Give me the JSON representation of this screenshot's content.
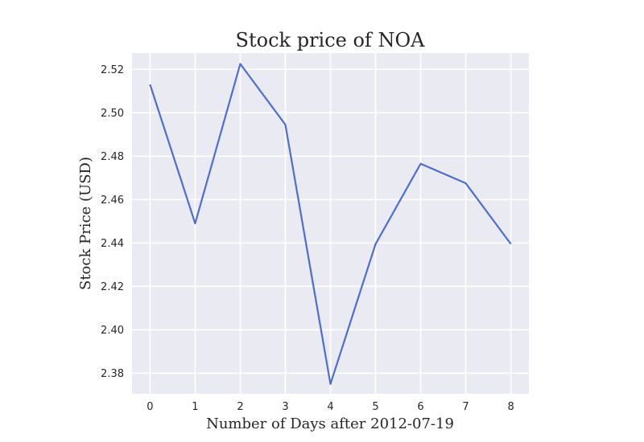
{
  "chart_data": {
    "type": "line",
    "title": "Stock price of NOA",
    "xlabel": "Number of Days after 2012-07-19",
    "ylabel": "Stock Price (USD)",
    "x": [
      0,
      1,
      2,
      3,
      4,
      5,
      6,
      7,
      8
    ],
    "series": [
      {
        "name": "",
        "values": [
          2.513,
          2.449,
          2.5225,
          2.4945,
          2.375,
          2.4395,
          2.4765,
          2.4675,
          2.4395
        ]
      }
    ],
    "xticks": [
      "0",
      "1",
      "2",
      "3",
      "4",
      "5",
      "6",
      "7",
      "8"
    ],
    "yticks": [
      "2.38",
      "2.40",
      "2.42",
      "2.44",
      "2.46",
      "2.48",
      "2.50",
      "2.52"
    ],
    "xlim": [
      -0.4,
      8.4
    ],
    "ylim": [
      2.3705,
      2.5275
    ],
    "grid": true,
    "colors": {
      "line": "#4c6fcf",
      "plot_bg": "#eaeaf2",
      "grid": "#ffffff"
    }
  }
}
